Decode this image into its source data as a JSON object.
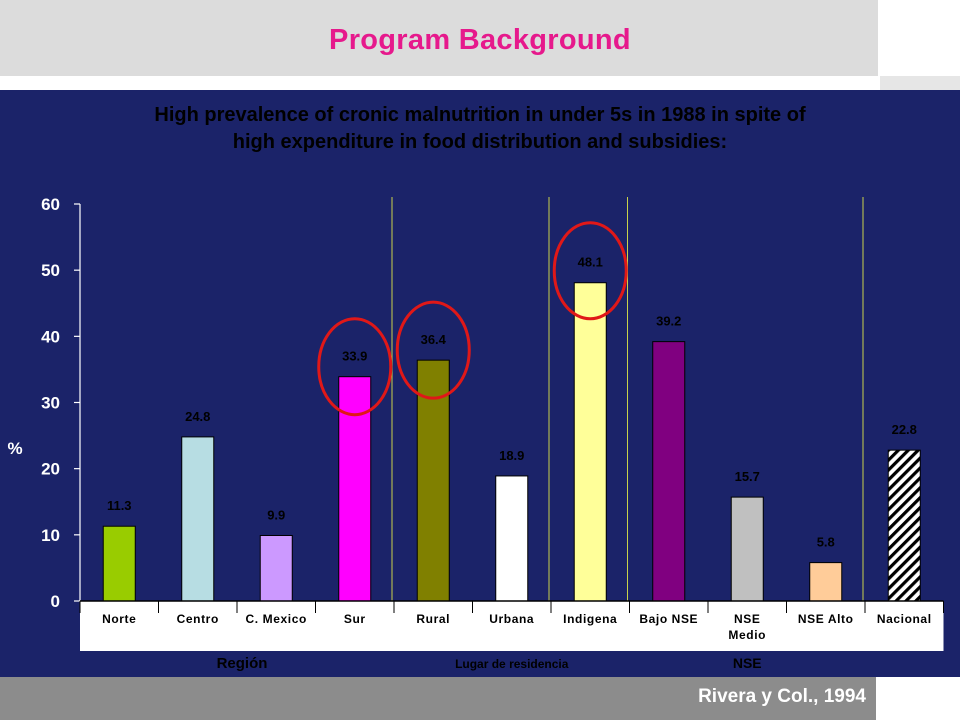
{
  "slide_title": "Program Background",
  "citation": "Rivera y Col., 1994",
  "colors": {
    "title": "#e6198c",
    "panel": "#1b2369",
    "header_band": "#dcdcdc",
    "footer_band": "#8c8c8c",
    "highlight_circle": "#e01818"
  },
  "chart_data": {
    "type": "bar",
    "title": "High prevalence of cronic malnutrition in  under 5s in 1988 in spite of high expenditure in food distribution and subsidies:",
    "title_lines": [
      "High prevalence of cronic malnutrition in  under 5s in 1988 in spite of",
      "high expenditure in food distribution and subsidies:"
    ],
    "ylabel": "%",
    "xlabel": "",
    "ylim": [
      0,
      60
    ],
    "yticks": [
      0,
      10,
      20,
      30,
      40,
      50,
      60
    ],
    "grid": false,
    "legend": "none",
    "categories": [
      "Norte",
      "Centro",
      "C. Mexico",
      "Sur",
      "Rural",
      "Urbana",
      "Indigena",
      "Bajo NSE",
      "NSE Medio",
      "NSE Alto",
      "Nacional"
    ],
    "category_lines": [
      [
        "Norte"
      ],
      [
        "Centro"
      ],
      [
        "C. Mexico"
      ],
      [
        "Sur"
      ],
      [
        "Rural"
      ],
      [
        "Urbana"
      ],
      [
        "Indigena"
      ],
      [
        "Bajo NSE"
      ],
      [
        "NSE",
        "Medio"
      ],
      [
        "NSE Alto"
      ],
      [
        "Nacional"
      ]
    ],
    "values": [
      11.3,
      24.8,
      9.9,
      33.9,
      36.4,
      18.9,
      48.1,
      39.2,
      15.7,
      5.8,
      22.8
    ],
    "value_labels": [
      "11.3",
      "24.8",
      "9.9",
      "33.9",
      "36.4",
      "18.9",
      "48.1",
      "39.2",
      "15.7",
      "5.8",
      "22.8"
    ],
    "bar_colors": [
      "#99cc00",
      "#b7dde3",
      "#cc99ff",
      "#ff00ff",
      "#808000",
      "#ffffff",
      "#ffff99",
      "#800080",
      "#c0c0c0",
      "#ffcc99",
      "#ffffff"
    ],
    "bar_patterns": [
      "solid",
      "solid",
      "solid",
      "solid",
      "solid",
      "solid",
      "solid",
      "solid",
      "solid",
      "solid",
      "diagonal-hatch"
    ],
    "highlighted": [
      "Sur",
      "Rural",
      "Indigena"
    ],
    "groups": [
      {
        "label": "Región",
        "categories": [
          "Norte",
          "Centro",
          "C. Mexico",
          "Sur"
        ]
      },
      {
        "label": "Lugar de  residencia",
        "categories": [
          "Rural",
          "Urbana",
          "Indigena"
        ]
      },
      {
        "label": "NSE",
        "categories": [
          "Bajo NSE",
          "NSE Medio",
          "NSE Alto"
        ]
      }
    ]
  }
}
